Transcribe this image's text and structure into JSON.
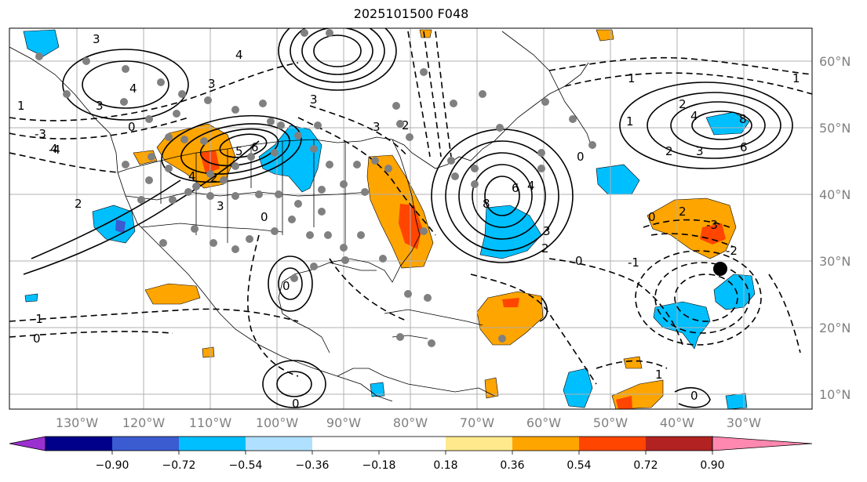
{
  "title": "2025101500 F048",
  "map": {
    "lon_labels": [
      "130°W",
      "120°W",
      "110°W",
      "100°W",
      "90°W",
      "80°W",
      "70°W",
      "60°W",
      "50°W",
      "40°W",
      "30°W"
    ],
    "lat_labels": [
      "60°N",
      "50°N",
      "40°N",
      "30°N",
      "20°N",
      "10°N"
    ],
    "contour_labels": [
      "3",
      "4",
      "2",
      "0",
      "3",
      "4",
      "1",
      "3",
      "2",
      "4",
      "5",
      "6",
      "0",
      "3",
      "4",
      "1",
      "2",
      "3",
      "4",
      "6",
      "8",
      "2",
      "1",
      "0",
      "1",
      "8",
      "6",
      "4",
      "2",
      "3",
      "-1",
      "0",
      "-3",
      "-4",
      "-1",
      "0",
      "-2",
      "-3",
      "2",
      "0",
      "1",
      "0",
      "2",
      "3",
      "3",
      "0",
      "0"
    ]
  },
  "colorbar": {
    "colors": [
      "#9b30d0",
      "#00008b",
      "#3b5bd1",
      "#00bfff",
      "#b0e0ff",
      "#ffffff",
      "#ffe98c",
      "#ffa500",
      "#ff4500",
      "#b22222",
      "#ff88b0"
    ],
    "tick_labels": [
      "−0.90",
      "−0.72",
      "−0.54",
      "−0.36",
      "−0.18",
      "0.18",
      "0.36",
      "0.54",
      "0.72",
      "0.90"
    ]
  }
}
